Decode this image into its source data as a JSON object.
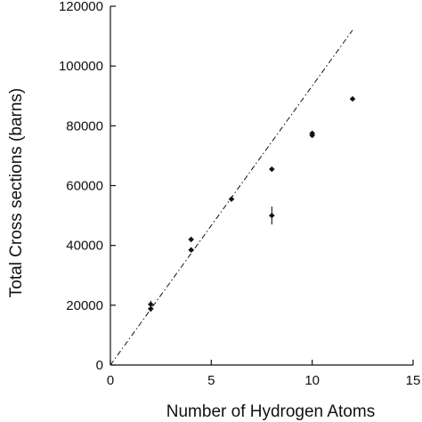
{
  "chart_data": {
    "type": "scatter",
    "title": "",
    "xlabel": "Number of Hydrogen Atoms",
    "ylabel": "Total Cross sections (barns)",
    "xlim": [
      0,
      15
    ],
    "ylim": [
      0,
      120000
    ],
    "xticks": [
      0,
      5,
      10,
      15
    ],
    "xtick_labels": [
      "0",
      "5",
      "10",
      "15"
    ],
    "yticks": [
      0,
      20000,
      40000,
      60000,
      80000,
      100000,
      120000
    ],
    "ytick_labels": [
      "0",
      "20000",
      "40000",
      "60000",
      "80000",
      "100000",
      "120000"
    ],
    "grid": false,
    "series": [
      {
        "points": [
          {
            "x": 2,
            "y": 18800,
            "yerr": 1000
          },
          {
            "x": 2,
            "y": 20300,
            "yerr": 1200
          },
          {
            "x": 4,
            "y": 38500,
            "yerr": 800
          },
          {
            "x": 4,
            "y": 42000,
            "yerr": 800
          },
          {
            "x": 6,
            "y": 55500,
            "yerr": 600
          },
          {
            "x": 8,
            "y": 50000,
            "yerr": 3000
          },
          {
            "x": 8,
            "y": 65500,
            "yerr": 700
          },
          {
            "x": 10,
            "y": 77500,
            "yerr": 700
          },
          {
            "x": 10,
            "y": 76800,
            "yerr": 700
          },
          {
            "x": 12,
            "y": 89000,
            "yerr": 600
          }
        ]
      }
    ],
    "reference_line": {
      "style": "dash-dot",
      "x": [
        0,
        12
      ],
      "y": [
        0,
        112000
      ]
    }
  }
}
